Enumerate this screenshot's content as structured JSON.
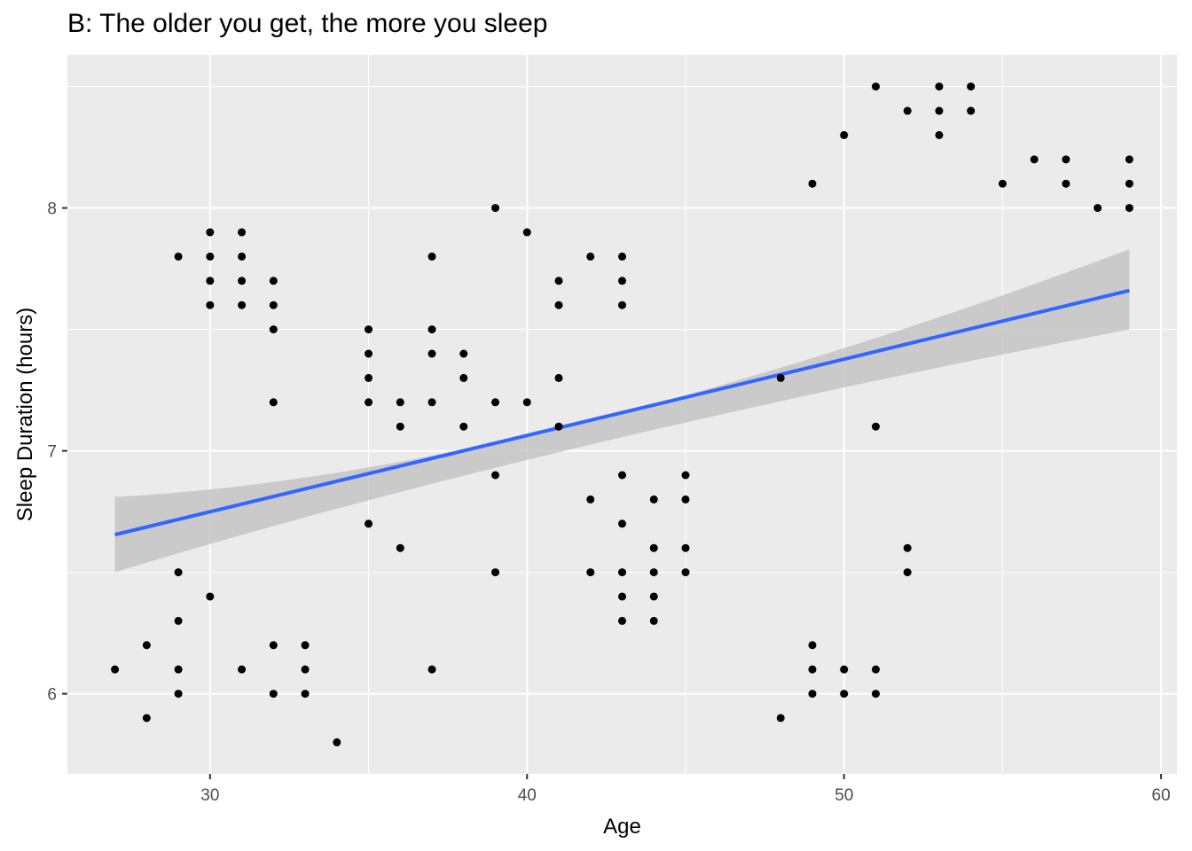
{
  "chart_data": {
    "type": "scatter",
    "title": "B: The older you get, the more you sleep",
    "xlabel": "Age",
    "ylabel": "Sleep Duration (hours)",
    "xlim": [
      25.5,
      60.5
    ],
    "ylim": [
      5.67,
      8.63
    ],
    "x_ticks": [
      30,
      40,
      50,
      60
    ],
    "y_ticks": [
      6,
      7,
      8
    ],
    "x_minor": [
      35,
      45,
      55
    ],
    "y_minor": [
      6.5,
      7.5,
      8.5
    ],
    "grid": true,
    "legend": "none",
    "colors": {
      "panel": "#ebebeb",
      "grid": "#ffffff",
      "point": "#000000",
      "trend": "#3366ff",
      "ribbon": "#bfbfbf"
    },
    "points": [
      [
        27,
        6.1
      ],
      [
        28,
        6.2
      ],
      [
        28,
        5.9
      ],
      [
        29,
        7.8
      ],
      [
        29,
        6.5
      ],
      [
        29,
        6.3
      ],
      [
        29,
        6.1
      ],
      [
        29,
        6.0
      ],
      [
        30,
        7.9
      ],
      [
        30,
        7.8
      ],
      [
        30,
        7.7
      ],
      [
        30,
        7.6
      ],
      [
        30,
        6.4
      ],
      [
        31,
        7.9
      ],
      [
        31,
        7.8
      ],
      [
        31,
        7.7
      ],
      [
        31,
        7.6
      ],
      [
        31,
        6.1
      ],
      [
        32,
        7.7
      ],
      [
        32,
        7.6
      ],
      [
        32,
        7.5
      ],
      [
        32,
        7.2
      ],
      [
        32,
        6.2
      ],
      [
        32,
        6.0
      ],
      [
        33,
        6.2
      ],
      [
        33,
        6.1
      ],
      [
        33,
        6.0
      ],
      [
        34,
        5.8
      ],
      [
        35,
        7.5
      ],
      [
        35,
        7.4
      ],
      [
        35,
        7.3
      ],
      [
        35,
        7.2
      ],
      [
        35,
        6.7
      ],
      [
        36,
        7.2
      ],
      [
        36,
        7.1
      ],
      [
        36,
        6.6
      ],
      [
        37,
        7.8
      ],
      [
        37,
        7.5
      ],
      [
        37,
        7.4
      ],
      [
        37,
        7.2
      ],
      [
        37,
        6.1
      ],
      [
        38,
        7.4
      ],
      [
        38,
        7.3
      ],
      [
        38,
        7.1
      ],
      [
        39,
        8.0
      ],
      [
        39,
        7.2
      ],
      [
        39,
        6.9
      ],
      [
        39,
        6.5
      ],
      [
        40,
        7.9
      ],
      [
        40,
        7.2
      ],
      [
        41,
        7.7
      ],
      [
        41,
        7.6
      ],
      [
        41,
        7.3
      ],
      [
        41,
        7.1
      ],
      [
        42,
        7.8
      ],
      [
        42,
        6.8
      ],
      [
        42,
        6.5
      ],
      [
        43,
        7.8
      ],
      [
        43,
        7.7
      ],
      [
        43,
        7.6
      ],
      [
        43,
        6.9
      ],
      [
        43,
        6.7
      ],
      [
        43,
        6.5
      ],
      [
        43,
        6.4
      ],
      [
        43,
        6.3
      ],
      [
        44,
        6.8
      ],
      [
        44,
        6.6
      ],
      [
        44,
        6.5
      ],
      [
        44,
        6.4
      ],
      [
        44,
        6.3
      ],
      [
        45,
        6.9
      ],
      [
        45,
        6.8
      ],
      [
        45,
        6.6
      ],
      [
        45,
        6.5
      ],
      [
        48,
        7.3
      ],
      [
        48,
        5.9
      ],
      [
        49,
        8.1
      ],
      [
        49,
        6.2
      ],
      [
        49,
        6.1
      ],
      [
        49,
        6.0
      ],
      [
        50,
        8.3
      ],
      [
        50,
        6.1
      ],
      [
        50,
        6.0
      ],
      [
        51,
        8.5
      ],
      [
        51,
        7.1
      ],
      [
        51,
        6.1
      ],
      [
        51,
        6.0
      ],
      [
        52,
        8.4
      ],
      [
        52,
        6.6
      ],
      [
        52,
        6.5
      ],
      [
        53,
        8.5
      ],
      [
        53,
        8.4
      ],
      [
        53,
        8.3
      ],
      [
        54,
        8.5
      ],
      [
        54,
        8.4
      ],
      [
        55,
        8.1
      ],
      [
        56,
        8.2
      ],
      [
        57,
        8.2
      ],
      [
        57,
        8.1
      ],
      [
        58,
        8.0
      ],
      [
        59,
        8.2
      ],
      [
        59,
        8.1
      ],
      [
        59,
        8.0
      ]
    ],
    "trend": {
      "method": "linear",
      "x": [
        27,
        59
      ],
      "y": [
        6.655,
        7.66
      ],
      "ci_upper": [
        6.81,
        7.83
      ],
      "ci_lower": [
        6.5,
        7.5
      ],
      "ci_mid_x": 40,
      "ci_mid": [
        7.11,
        7.01
      ]
    }
  }
}
